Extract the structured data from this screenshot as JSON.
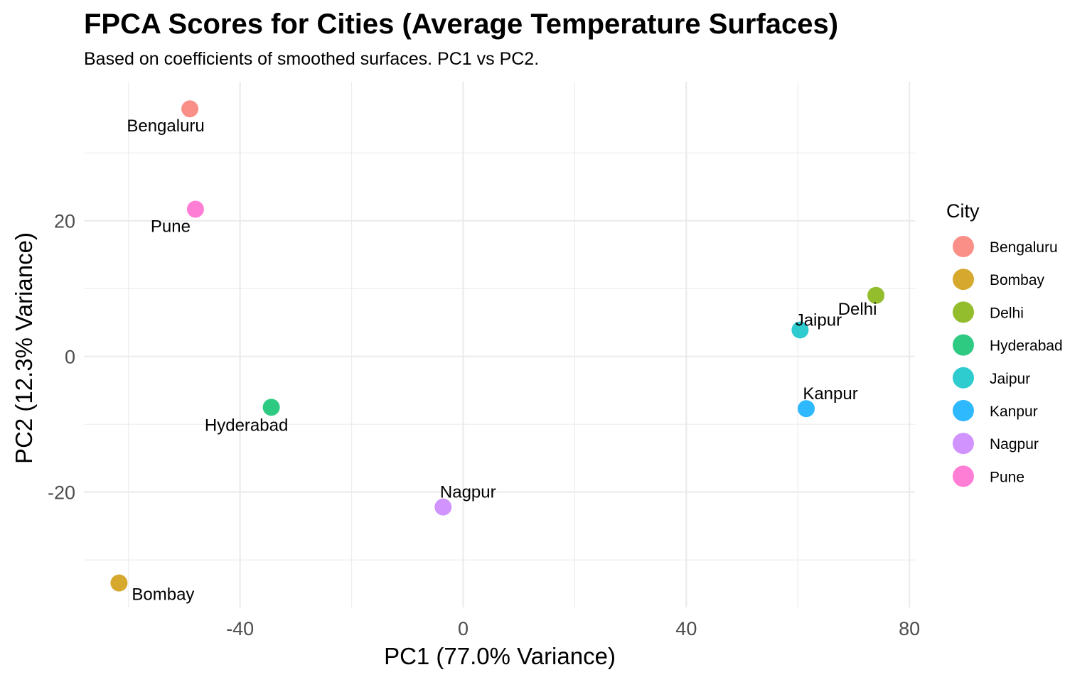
{
  "chart_data": {
    "type": "scatter",
    "title": "FPCA Scores for Cities (Average Temperature Surfaces)",
    "subtitle": "Based on coefficients of smoothed surfaces. PC1 vs PC2.",
    "xlabel": "PC1 (77.0% Variance)",
    "ylabel": "PC2 (12.3% Variance)",
    "xlim": [
      -68,
      81
    ],
    "ylim": [
      -37,
      40.5
    ],
    "x_ticks": [
      -40,
      0,
      40,
      80
    ],
    "y_ticks": [
      -20,
      0,
      20
    ],
    "grid": true,
    "legend": {
      "title": "City",
      "position": "right"
    },
    "series": [
      {
        "name": "Bengaluru",
        "color": "#F8766D",
        "x": -49.0,
        "y": 36.5
      },
      {
        "name": "Bombay",
        "color": "#CD9600",
        "x": -61.7,
        "y": -33.4
      },
      {
        "name": "Delhi",
        "color": "#7CAE00",
        "x": 74.0,
        "y": 9.0
      },
      {
        "name": "Hyderabad",
        "color": "#00BE67",
        "x": -34.4,
        "y": -7.5
      },
      {
        "name": "Jaipur",
        "color": "#00BFC4",
        "x": 60.4,
        "y": 3.9
      },
      {
        "name": "Kanpur",
        "color": "#00A9FF",
        "x": 61.5,
        "y": -7.7
      },
      {
        "name": "Nagpur",
        "color": "#C77CFF",
        "x": -3.6,
        "y": -22.2
      },
      {
        "name": "Pune",
        "color": "#FF61CC",
        "x": -48.0,
        "y": 21.7
      }
    ]
  }
}
